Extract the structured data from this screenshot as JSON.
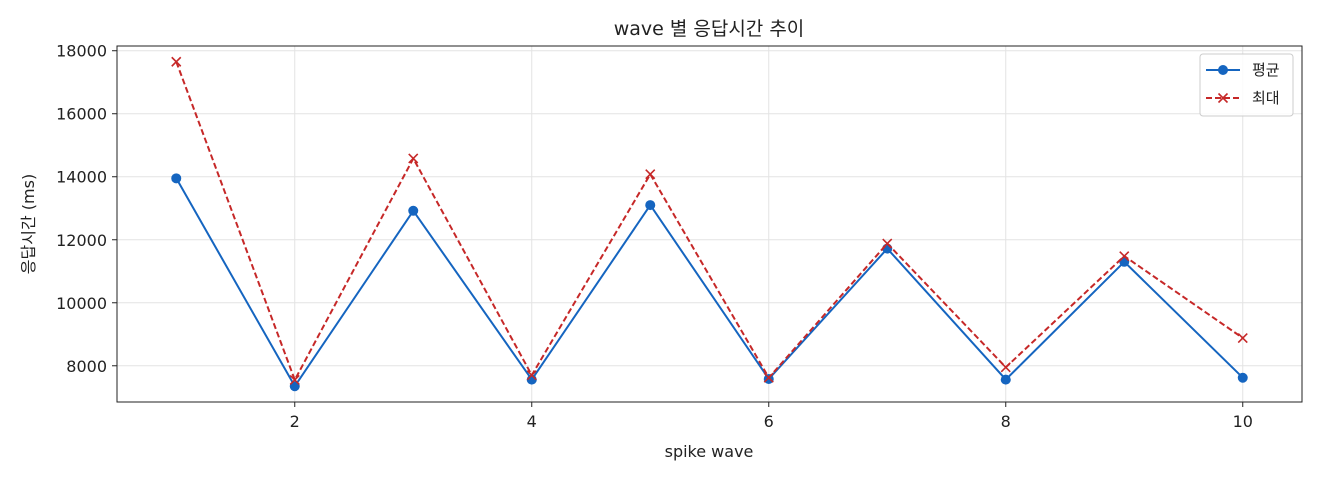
{
  "chart_data": {
    "type": "line",
    "title": "wave 별 응답시간 추이",
    "xlabel": "spike wave",
    "ylabel": "응답시간 (ms)",
    "x": [
      1,
      2,
      3,
      4,
      5,
      6,
      7,
      8,
      9,
      10
    ],
    "xlim": [
      0.5,
      10.5
    ],
    "ylim": [
      6850,
      18150
    ],
    "xticks": [
      2,
      4,
      6,
      8,
      10
    ],
    "yticks": [
      8000,
      10000,
      12000,
      14000,
      16000,
      18000
    ],
    "grid": true,
    "legend_position": "top-right",
    "series": [
      {
        "name": "평균",
        "color": "#1565c0",
        "line_style": "solid",
        "marker": "circle",
        "values": [
          13950,
          7350,
          12920,
          7560,
          13100,
          7580,
          11720,
          7560,
          11300,
          7620
        ]
      },
      {
        "name": "최대",
        "color": "#c62828",
        "line_style": "dashed",
        "marker": "x",
        "values": [
          17650,
          7550,
          14580,
          7700,
          14080,
          7620,
          11880,
          7950,
          11480,
          8880
        ]
      }
    ]
  }
}
